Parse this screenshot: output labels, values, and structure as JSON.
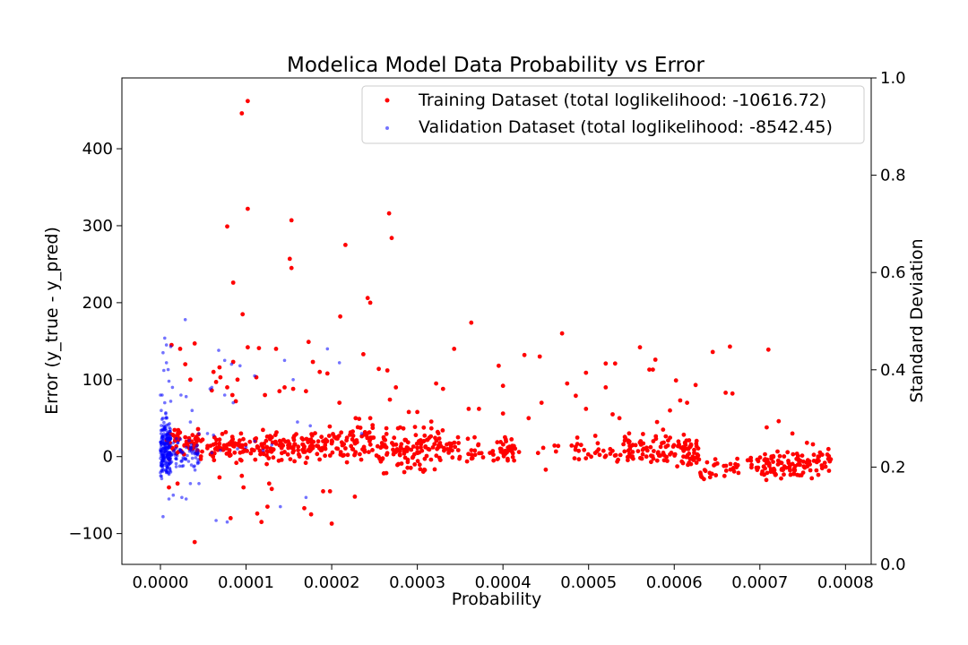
{
  "chart_data": {
    "type": "scatter",
    "title": "Modelica Model Data Probability vs Error",
    "xlabel": "Probability",
    "ylabel": "Error (y_true - y_pred)",
    "y2label": "Standard Deviation",
    "xlim": [
      -4.5e-05,
      0.00083
    ],
    "ylim": [
      -140,
      492
    ],
    "y2lim": [
      0,
      1
    ],
    "xticks": [
      0,
      0.0001,
      0.0002,
      0.0003,
      0.0004,
      0.0005,
      0.0006,
      0.0007,
      0.0008
    ],
    "xtick_labels": [
      "0.0000",
      "0.0001",
      "0.0002",
      "0.0003",
      "0.0004",
      "0.0005",
      "0.0006",
      "0.0007",
      "0.0008"
    ],
    "yticks": [
      -100,
      0,
      100,
      200,
      300,
      400
    ],
    "ytick_labels": [
      "−100",
      "0",
      "100",
      "200",
      "300",
      "400"
    ],
    "y2ticks": [
      0,
      0.2,
      0.4,
      0.6,
      0.8,
      1
    ],
    "y2tick_labels": [
      "0.0",
      "0.2",
      "0.4",
      "0.6",
      "0.8",
      "1.0"
    ],
    "grid": false,
    "legend_position": "top-right",
    "series": [
      {
        "name": "Training Dataset (total loglikelihood: -10616.72)",
        "color": "#ff0000",
        "points": [
          [
            0.000102,
            462
          ],
          [
            9.5e-05,
            446
          ],
          [
            0.000102,
            322
          ],
          [
            0.000267,
            316
          ],
          [
            0.000153,
            307
          ],
          [
            7.8e-05,
            299
          ],
          [
            0.00027,
            284
          ],
          [
            0.000216,
            275
          ],
          [
            0.000151,
            257
          ],
          [
            0.000153,
            245
          ],
          [
            8.5e-05,
            226
          ],
          [
            0.000242,
            206
          ],
          [
            0.000245,
            200
          ],
          [
            9.6e-05,
            185
          ],
          [
            0.00021,
            182
          ],
          [
            0.000363,
            174
          ],
          [
            0.000469,
            160
          ],
          [
            0.000173,
            149
          ],
          [
            4e-05,
            147
          ],
          [
            0.000135,
            140
          ],
          [
            0.000115,
            141
          ],
          [
            0.000102,
            142
          ],
          [
            0.000343,
            140
          ],
          [
            0.00056,
            142
          ],
          [
            0.000665,
            143
          ],
          [
            0.000645,
            136
          ],
          [
            0.00071,
            139
          ],
          [
            0.000425,
            132
          ],
          [
            0.000443,
            130
          ],
          [
            0.000237,
            133
          ],
          [
            0.000178,
            123
          ],
          [
            0.000395,
            118
          ],
          [
            0.000497,
            109
          ],
          [
            0.00052,
            121
          ],
          [
            0.000531,
            121
          ],
          [
            0.000578,
            126
          ],
          [
            8.5e-05,
            123
          ],
          [
            6.2e-05,
            110
          ],
          [
            7e-05,
            103
          ],
          [
            0.000112,
            103
          ],
          [
            0.000195,
            108
          ],
          [
            0.000255,
            114
          ],
          [
            0.000265,
            112
          ],
          [
            0.000322,
            95
          ],
          [
            0.00033,
            88
          ],
          [
            0.0004,
            92
          ],
          [
            0.000475,
            95
          ],
          [
            0.00052,
            90
          ],
          [
            0.000485,
            79
          ],
          [
            0.000445,
            70
          ],
          [
            0.000575,
            113
          ],
          [
            0.000571,
            113
          ],
          [
            0.000602,
            99
          ],
          [
            0.000607,
            73
          ],
          [
            0.000615,
            70
          ],
          [
            0.000625,
            93
          ],
          [
            0.00066,
            83
          ],
          [
            0.000668,
            82
          ],
          [
            0.00036,
            62
          ],
          [
            0.000372,
            62
          ],
          [
            0.0004,
            56
          ],
          [
            0.00043,
            50
          ],
          [
            0.000497,
            62
          ],
          [
            0.000528,
            55
          ],
          [
            0.000536,
            50
          ],
          [
            0.00029,
            58
          ],
          [
            0.0003,
            58
          ],
          [
            0.000232,
            49
          ],
          [
            0.000228,
            50
          ],
          [
            0.000245,
            50
          ],
          [
            0.000268,
            74
          ],
          [
            0.000275,
            90
          ],
          [
            0.000139,
            85
          ],
          [
            0.000145,
            90
          ],
          [
            0.000155,
            88
          ],
          [
            0.00017,
            85
          ],
          [
            0.000186,
            110
          ],
          [
            0.000209,
            70
          ],
          [
            7.8e-05,
            90
          ],
          [
            8.4e-05,
            80
          ],
          [
            8.8e-05,
            72
          ],
          [
            9e-05,
            100
          ],
          [
            0.000122,
            80
          ],
          [
            6.9e-05,
            116
          ],
          [
            6.5e-05,
            97
          ],
          [
            6e-05,
            86
          ],
          [
            3.5e-05,
            100
          ],
          [
            2.9e-05,
            120
          ],
          [
            2.3e-05,
            140
          ],
          [
            1.3e-05,
            145
          ],
          [
            0.000722,
            46
          ],
          [
            0.000708,
            38
          ],
          [
            0.000738,
            30
          ],
          [
            0.000755,
            18
          ],
          [
            0.000762,
            16
          ],
          [
            0.00058,
            45
          ],
          [
            0.000587,
            35
          ],
          [
            0.000595,
            60
          ],
          [
            9.5e-05,
            -25
          ],
          [
            6.9e-05,
            -27
          ],
          [
            8.2e-05,
            -80
          ],
          [
            0.000113,
            -74
          ],
          [
            0.000118,
            -85
          ],
          [
            0.000125,
            -65
          ],
          [
            0.00013,
            -42
          ],
          [
            0.000127,
            -35
          ],
          [
            0.000168,
            -67
          ],
          [
            0.000176,
            -75
          ],
          [
            0.00019,
            -45
          ],
          [
            0.000198,
            -45
          ],
          [
            0.0002,
            -87
          ],
          [
            0.000227,
            -52
          ],
          [
            9.7e-05,
            -40
          ],
          [
            4e-05,
            -111
          ],
          [
            0.00045,
            -17
          ],
          [
            1e-05,
            -40
          ],
          [
            2e-05,
            -35
          ]
        ],
        "band_segments": [
          {
            "x0": 5e-06,
            "x1": 6e-05,
            "y0": 17,
            "y1": 15,
            "count": 70,
            "spread": 9
          },
          {
            "x0": 6e-05,
            "x1": 0.00018,
            "y0": 14,
            "y1": 12,
            "count": 170,
            "spread": 9
          },
          {
            "x0": 0.00018,
            "x1": 0.00025,
            "y0": 14,
            "y1": 22,
            "count": 90,
            "spread": 10
          },
          {
            "x0": 0.00025,
            "x1": 0.00033,
            "y0": 8,
            "y1": 14,
            "count": 120,
            "spread": 14
          },
          {
            "x0": 0.00033,
            "x1": 0.000395,
            "y0": 8,
            "y1": 5,
            "count": 40,
            "spread": 8
          },
          {
            "x0": 0.000395,
            "x1": 0.000415,
            "y0": 10,
            "y1": 10,
            "count": 35,
            "spread": 7
          },
          {
            "x0": 0.000415,
            "x1": 0.00048,
            "y0": 4,
            "y1": 4,
            "count": 6,
            "spread": 5
          },
          {
            "x0": 0.00048,
            "x1": 0.00054,
            "y0": 10,
            "y1": 2,
            "count": 30,
            "spread": 8
          },
          {
            "x0": 0.00054,
            "x1": 0.00063,
            "y0": 8,
            "y1": 5,
            "count": 120,
            "spread": 10
          },
          {
            "x0": 0.00063,
            "x1": 0.0007,
            "y0": -20,
            "y1": -10,
            "count": 40,
            "spread": 7
          },
          {
            "x0": 0.0007,
            "x1": 0.000785,
            "y0": -14,
            "y1": -8,
            "count": 110,
            "spread": 9
          }
        ]
      },
      {
        "name": "Validation Dataset (total loglikelihood: -8542.45)",
        "color": "#0000ff",
        "points": [
          [
            2.9e-05,
            178
          ],
          [
            5e-06,
            154
          ],
          [
            7e-06,
            145
          ],
          [
            3e-06,
            135
          ],
          [
            1.2e-05,
            143
          ],
          [
            4e-06,
            112
          ],
          [
            9e-06,
            113
          ],
          [
            7e-06,
            122
          ],
          [
            1e-05,
            98
          ],
          [
            0.0,
            80
          ],
          [
            2e-06,
            80
          ],
          [
            1.4e-05,
            90
          ],
          [
            5e-06,
            70
          ],
          [
            1.2e-05,
            72
          ],
          [
            2.4e-05,
            80
          ],
          [
            3e-05,
            78
          ],
          [
            3.7e-05,
            60
          ],
          [
            3.5e-05,
            45
          ],
          [
            4.5e-05,
            30
          ],
          [
            5.5e-05,
            30
          ],
          [
            6.2e-05,
            28
          ],
          [
            6.8e-05,
            138
          ],
          [
            7.5e-05,
            125
          ],
          [
            8.3e-05,
            120
          ],
          [
            9.3e-05,
            118
          ],
          [
            0.00011,
            105
          ],
          [
            0.000145,
            125
          ],
          [
            6e-05,
            90
          ],
          [
            5.8e-05,
            88
          ],
          [
            7.5e-05,
            80
          ],
          [
            8.5e-05,
            70
          ],
          [
            0.00016,
            45
          ],
          [
            0.000175,
            40
          ],
          [
            0.000195,
            140
          ],
          [
            0.000209,
            122
          ],
          [
            0.000235,
            30
          ],
          [
            0.000155,
            100
          ],
          [
            3e-06,
            -78
          ],
          [
            1e-05,
            -55
          ],
          [
            1.5e-05,
            -50
          ],
          [
            2.5e-05,
            -53
          ],
          [
            3e-05,
            -55
          ],
          [
            3.5e-05,
            -35
          ],
          [
            4.5e-05,
            -35
          ],
          [
            7.8e-05,
            -85
          ],
          [
            6.5e-05,
            -83
          ],
          [
            0.00014,
            -65
          ],
          [
            0.00017,
            -53
          ],
          [
            0.00011,
            20
          ],
          [
            0.00013,
            15
          ],
          [
            0.0001,
            12
          ],
          [
            7e-05,
            8
          ],
          [
            9e-05,
            10
          ],
          [
            0.00012,
            8
          ],
          [
            6e-05,
            5
          ],
          [
            4e-06,
            40
          ],
          [
            6e-06,
            50
          ],
          [
            1e-06,
            60
          ],
          [
            8e-06,
            0
          ],
          [
            1.2e-05,
            -20
          ]
        ],
        "band_segments": [
          {
            "x0": 0.0,
            "x1": 1.2e-05,
            "y0": 10,
            "y1": 10,
            "count": 220,
            "spread": 18
          },
          {
            "x0": 1.2e-05,
            "x1": 4.5e-05,
            "y0": 8,
            "y1": 5,
            "count": 70,
            "spread": 12
          }
        ]
      }
    ]
  }
}
